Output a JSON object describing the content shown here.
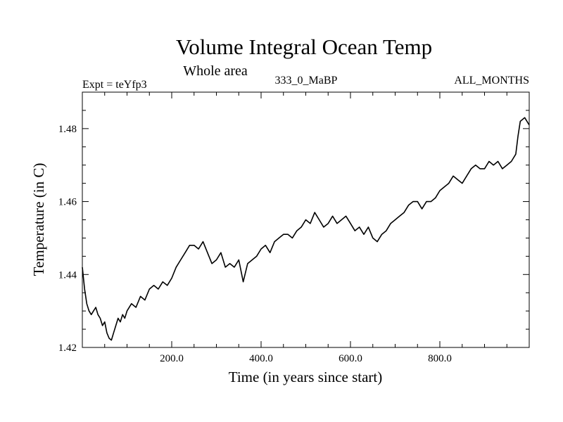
{
  "chart_data": {
    "type": "line",
    "title": "Volume Integral Ocean Temp",
    "subtitle": "Whole area",
    "info_left": "Expt = teYfp3",
    "info_center": "333_0_MaBP",
    "info_right": "ALL_MONTHS",
    "xlabel": "Time (in years since start)",
    "ylabel": "Temperature (in C)",
    "xlim": [
      0,
      1000
    ],
    "ylim": [
      1.42,
      1.49
    ],
    "xticks": [
      200,
      400,
      600,
      800
    ],
    "xtick_labels": [
      "200.0",
      "400.0",
      "600.0",
      "800.0"
    ],
    "yticks": [
      1.42,
      1.44,
      1.46,
      1.48
    ],
    "ytick_labels": [
      "1.42",
      "1.44",
      "1.46",
      "1.48"
    ],
    "series": [
      {
        "name": "Volume Integral Ocean Temp",
        "x": [
          0,
          5,
          10,
          15,
          20,
          25,
          30,
          35,
          40,
          45,
          50,
          55,
          60,
          65,
          70,
          75,
          80,
          85,
          90,
          95,
          100,
          110,
          120,
          130,
          140,
          150,
          160,
          170,
          180,
          190,
          200,
          210,
          220,
          230,
          240,
          250,
          260,
          270,
          280,
          290,
          300,
          310,
          320,
          330,
          340,
          350,
          360,
          370,
          380,
          390,
          400,
          410,
          420,
          430,
          440,
          450,
          460,
          470,
          480,
          490,
          500,
          510,
          520,
          530,
          540,
          550,
          560,
          570,
          580,
          590,
          600,
          610,
          620,
          630,
          640,
          650,
          660,
          670,
          680,
          690,
          700,
          710,
          720,
          730,
          740,
          750,
          760,
          770,
          780,
          790,
          800,
          810,
          820,
          830,
          840,
          850,
          860,
          870,
          880,
          890,
          900,
          910,
          920,
          930,
          940,
          950,
          960,
          970,
          975,
          980,
          990,
          1000
        ],
        "y": [
          1.442,
          1.436,
          1.432,
          1.43,
          1.429,
          1.43,
          1.431,
          1.429,
          1.428,
          1.426,
          1.427,
          1.424,
          1.4225,
          1.422,
          1.424,
          1.426,
          1.428,
          1.427,
          1.429,
          1.428,
          1.43,
          1.432,
          1.431,
          1.434,
          1.433,
          1.436,
          1.437,
          1.436,
          1.438,
          1.437,
          1.439,
          1.442,
          1.444,
          1.446,
          1.448,
          1.448,
          1.447,
          1.449,
          1.446,
          1.443,
          1.444,
          1.446,
          1.442,
          1.443,
          1.442,
          1.444,
          1.438,
          1.443,
          1.444,
          1.445,
          1.447,
          1.448,
          1.446,
          1.449,
          1.45,
          1.451,
          1.451,
          1.45,
          1.452,
          1.453,
          1.455,
          1.454,
          1.457,
          1.455,
          1.453,
          1.454,
          1.456,
          1.454,
          1.455,
          1.456,
          1.454,
          1.452,
          1.453,
          1.451,
          1.453,
          1.45,
          1.449,
          1.451,
          1.452,
          1.454,
          1.455,
          1.456,
          1.457,
          1.459,
          1.46,
          1.46,
          1.458,
          1.46,
          1.46,
          1.461,
          1.463,
          1.464,
          1.465,
          1.467,
          1.466,
          1.465,
          1.467,
          1.469,
          1.47,
          1.469,
          1.469,
          1.471,
          1.47,
          1.471,
          1.469,
          1.47,
          1.471,
          1.473,
          1.478,
          1.482,
          1.483,
          1.481
        ]
      }
    ]
  }
}
